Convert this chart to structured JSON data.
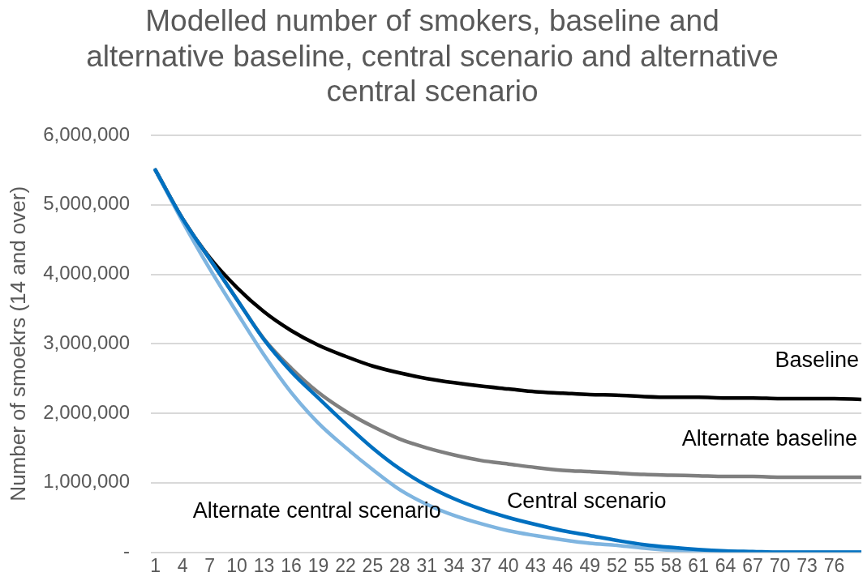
{
  "chart_data": {
    "type": "line",
    "title": "Modelled number of smokers, baseline and alternative baseline, central scenario and alternative central scenario",
    "ylabel": "Number of smoekrs (14 and over)",
    "x": [
      1,
      4,
      7,
      10,
      13,
      16,
      19,
      22,
      25,
      28,
      31,
      34,
      37,
      40,
      43,
      46,
      49,
      52,
      55,
      58,
      61,
      64,
      67,
      70,
      73,
      76,
      79
    ],
    "xlim": [
      0.5,
      79
    ],
    "xticks": [
      1,
      4,
      7,
      10,
      13,
      16,
      19,
      22,
      25,
      28,
      31,
      34,
      37,
      40,
      43,
      46,
      49,
      52,
      55,
      58,
      61,
      64,
      67,
      70,
      73,
      76
    ],
    "ylim": [
      0,
      6000000
    ],
    "yticks": [
      {
        "value": 0,
        "label": "-"
      },
      {
        "value": 1000000,
        "label": "1,000,000"
      },
      {
        "value": 2000000,
        "label": "2,000,000"
      },
      {
        "value": 3000000,
        "label": "3,000,000"
      },
      {
        "value": 4000000,
        "label": "4,000,000"
      },
      {
        "value": 5000000,
        "label": "5,000,000"
      },
      {
        "value": 6000000,
        "label": "6,000,000"
      }
    ],
    "grid": "y",
    "legend": false,
    "marker": "none",
    "line_style": "solid",
    "series": [
      {
        "name": "Baseline",
        "color": "#000000",
        "values": [
          5500000,
          4800000,
          4240000,
          3810000,
          3460000,
          3190000,
          2980000,
          2820000,
          2680000,
          2580000,
          2500000,
          2440000,
          2390000,
          2350000,
          2310000,
          2290000,
          2270000,
          2260000,
          2240000,
          2230000,
          2230000,
          2220000,
          2220000,
          2210000,
          2210000,
          2210000,
          2200000
        ]
      },
      {
        "name": "Alternate baseline",
        "color": "#7f7f7f",
        "values": [
          5500000,
          4800000,
          4220000,
          3640000,
          3070000,
          2650000,
          2300000,
          2030000,
          1810000,
          1630000,
          1500000,
          1400000,
          1320000,
          1270000,
          1220000,
          1180000,
          1160000,
          1140000,
          1120000,
          1110000,
          1100000,
          1090000,
          1090000,
          1080000,
          1080000,
          1080000,
          1080000
        ]
      },
      {
        "name": "Alternate central scenario",
        "color": "#7fb5e0",
        "values": [
          5500000,
          4760000,
          4080000,
          3450000,
          2840000,
          2300000,
          1860000,
          1510000,
          1190000,
          900000,
          690000,
          530000,
          410000,
          310000,
          240000,
          180000,
          130000,
          100000,
          60000,
          30000,
          20000,
          10000,
          0,
          0,
          0,
          0,
          0
        ]
      },
      {
        "name": "Central scenario",
        "color": "#0070c0",
        "values": [
          5500000,
          4800000,
          4220000,
          3640000,
          3060000,
          2600000,
          2220000,
          1850000,
          1500000,
          1200000,
          960000,
          770000,
          620000,
          500000,
          400000,
          310000,
          240000,
          170000,
          110000,
          70000,
          40000,
          20000,
          10000,
          0,
          0,
          0,
          0
        ]
      }
    ]
  }
}
